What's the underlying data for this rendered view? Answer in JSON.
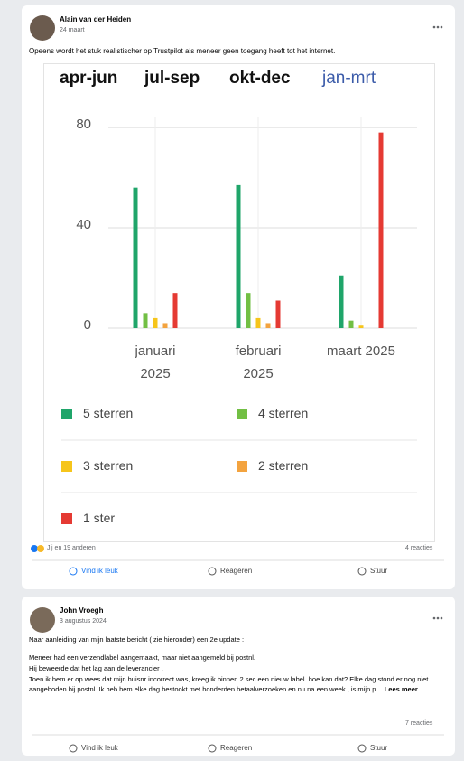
{
  "post1": {
    "author": "Alain van der Heiden",
    "date": "24 maart",
    "text": "Opeens wordt het stuk realistischer op Trustpilot als meneer geen toegang heeft tot het internet.",
    "chart": {
      "type": "bar",
      "tabs": [
        "apr-jun",
        "jul-sep",
        "okt-dec",
        "jan-mrt"
      ],
      "active_tab": 3,
      "categories": [
        "januari 2025",
        "februari 2025",
        "maart 2025"
      ],
      "series": [
        {
          "name": "5 sterren",
          "color": "#1fa56a",
          "values": [
            56,
            57,
            21
          ]
        },
        {
          "name": "4 sterren",
          "color": "#72bf44",
          "values": [
            6,
            14,
            3
          ]
        },
        {
          "name": "3 sterren",
          "color": "#f6c51b",
          "values": [
            4,
            4,
            1
          ]
        },
        {
          "name": "2 sterren",
          "color": "#f3a33f",
          "values": [
            2,
            2,
            0
          ]
        },
        {
          "name": "1 ster",
          "color": "#e53a33",
          "values": [
            14,
            11,
            78
          ]
        }
      ],
      "ylim": [
        0,
        84
      ],
      "yticks": [
        0,
        40,
        80
      ],
      "grid": true
    },
    "reactions": "Jij en 19 anderen",
    "comments": "4 reacties",
    "actions": [
      "Vind ik leuk",
      "Reageren",
      "Stuur"
    ]
  },
  "post2": {
    "author": "John Vroegh",
    "date": "3 augustus 2024",
    "text": [
      "Naar aanleiding van mijn laatste bericht ( zie hieronder) een 2e update :",
      "Meneer  had een verzendlabel aangemaakt, maar niet aangemeld bij postnl.",
      "Hij beweerde dat het lag aan de leverancier .",
      "Toen ik hem er op wees dat mijn huisnr incorrect was, kreeg ik binnen 2 sec een nieuw label. hoe kan dat? Elke dag stond er nog niet aangeboden bij postnl. Ik heb hem elke dag bestookt met honderden betaalverzoeken en nu na een week , is mijn p..."
    ],
    "more": "Lees meer",
    "comments": "7 reacties",
    "actions": [
      "Vind ik leuk",
      "Reageren",
      "Stuur"
    ]
  }
}
